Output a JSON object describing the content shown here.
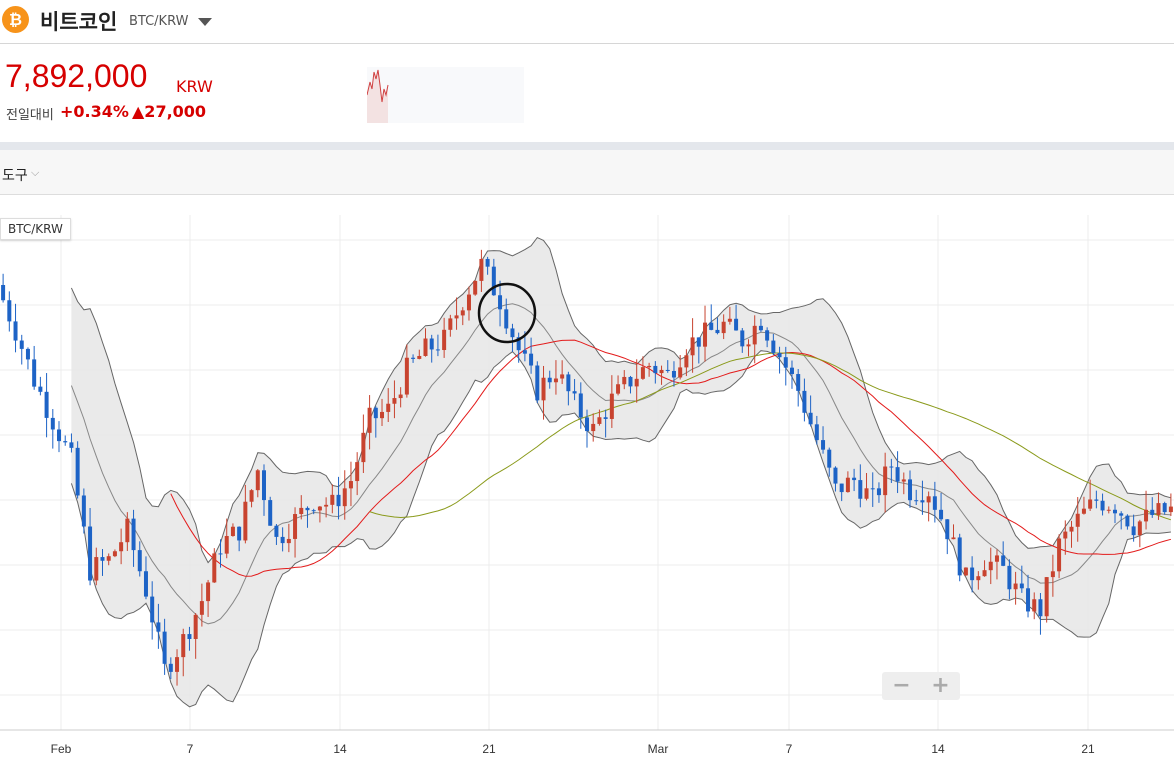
{
  "header": {
    "title": "비트코인",
    "pair": "BTC/KRW",
    "coin_icon": "bitcoin-icon",
    "coin_glyph": "₿"
  },
  "ticker": {
    "price": "7,892,000",
    "unit": "KRW",
    "change_label": "전일대비",
    "change_pct": "+0.34%",
    "change_abs": "▲27,000",
    "color_up": "#d60000"
  },
  "toolbar": {
    "tools_label": "도구",
    "chevron": "⌵"
  },
  "chart": {
    "symbol_label": "BTC/KRW",
    "zoom_out": "−",
    "zoom_in": "+"
  },
  "chart_data": {
    "type": "candlestick",
    "x_ticks": [
      "Feb",
      "7",
      "14",
      "21",
      "Mar",
      "7",
      "14",
      "21"
    ],
    "close_krw_approx": [
      10192000,
      9742000,
      9242000,
      8842000,
      8442000,
      7342000,
      7442000,
      7742000,
      7142000,
      6342000,
      6642000,
      7042000,
      7592000,
      7742000,
      8342000,
      7642000,
      7842000,
      8042000,
      7992000,
      8242000,
      8842000,
      8942000,
      9342000,
      9542000,
      9642000,
      10042000,
      10392000,
      10042000,
      9542000,
      9142000,
      9342000,
      8992000,
      8742000,
      9042000,
      9242000,
      9392000,
      9292000,
      9592000,
      9692000,
      9792000,
      9642000,
      9842000,
      9492000,
      9142000,
      8642000,
      8142000,
      8242000,
      8042000,
      8392000,
      8142000,
      8142000,
      7742000,
      7242000,
      7442000,
      7342000,
      7042000,
      6942000,
      7592000,
      7842000,
      8042000,
      7992000,
      7792000,
      7892000,
      7942000
    ],
    "indicators": [
      "bollinger-bands",
      "moving-average-short",
      "moving-average-long"
    ],
    "colors": {
      "up": "#c8432f",
      "down": "#1d63c6",
      "band_fill": "#e8e8e8",
      "band_line": "#666666",
      "ma_short": "#e31b1b",
      "ma_long": "#8a9a1a"
    },
    "grid": true
  }
}
